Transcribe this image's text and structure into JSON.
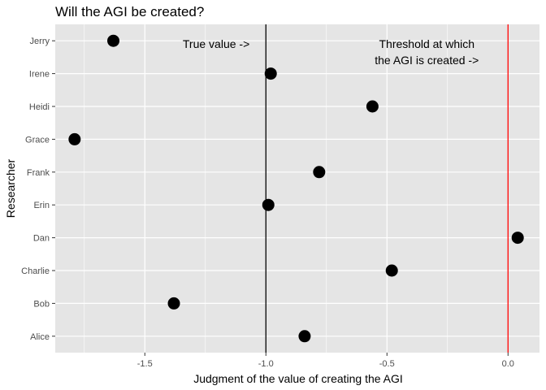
{
  "chart_data": {
    "type": "scatter",
    "title": "Will the AGI be created?",
    "xlabel": "Judgment of the value of creating the AGI",
    "ylabel": "Researcher",
    "xlim": [
      -1.87,
      0.13
    ],
    "x_ticks": [
      -1.5,
      -1.0,
      -0.5,
      0.0
    ],
    "x_tick_labels": [
      "-1.5",
      "-1.0",
      "-0.5",
      "0.0"
    ],
    "categories": [
      "Alice",
      "Bob",
      "Charlie",
      "Dan",
      "Erin",
      "Frank",
      "Grace",
      "Heidi",
      "Irene",
      "Jerry"
    ],
    "points": [
      {
        "name": "Alice",
        "x": -0.84
      },
      {
        "name": "Bob",
        "x": -1.38
      },
      {
        "name": "Charlie",
        "x": -0.48
      },
      {
        "name": "Dan",
        "x": 0.04
      },
      {
        "name": "Erin",
        "x": -0.99
      },
      {
        "name": "Frank",
        "x": -0.78
      },
      {
        "name": "Grace",
        "x": -1.79
      },
      {
        "name": "Heidi",
        "x": -0.56
      },
      {
        "name": "Irene",
        "x": -0.98
      },
      {
        "name": "Jerry",
        "x": -1.63
      }
    ],
    "reference_lines": [
      {
        "x": -1.0,
        "color": "#000000",
        "label": "True value ->"
      },
      {
        "x": 0.0,
        "color": "#ff0000",
        "label_lines": [
          "Threshold at which",
          "the AGI is created ->"
        ]
      }
    ],
    "grid": true,
    "legend": "none",
    "colors": {
      "panel_background": "#e5e5e5",
      "grid": "#ffffff",
      "point": "#000000",
      "true_value_line": "#000000",
      "threshold_line": "#ff0000"
    }
  }
}
